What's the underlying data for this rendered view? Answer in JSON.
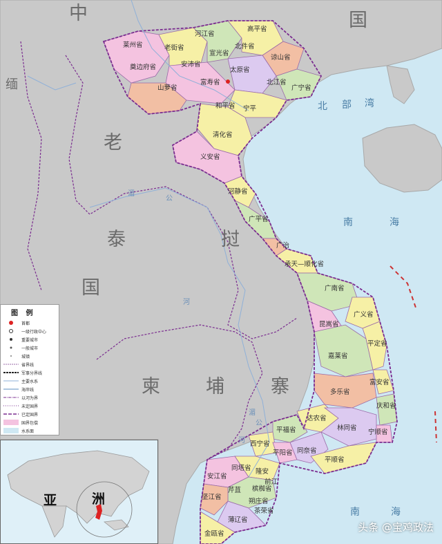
{
  "countries": {
    "china_left": "中",
    "china_right": "国",
    "laos_1": "老",
    "laos_2": "挝",
    "thailand_1": "泰",
    "thailand_2": "国",
    "cambodia_1": "柬",
    "cambodia_2": "埔",
    "cambodia_3": "寨",
    "burma": "缅"
  },
  "seas": {
    "gulf_1": "北",
    "gulf_2": "部",
    "gulf_3": "湾",
    "south_1": "南",
    "south_2": "海",
    "south_3": "南",
    "south_4": "海"
  },
  "provinces": {
    "hagiang": "河江省",
    "caobang": "高平省",
    "laichau": "莱州省",
    "laocai": "老街省",
    "tuyenquang": "宣光省",
    "backan": "北件省",
    "langson": "谅山省",
    "dienbien": "奠边府省",
    "yenbai": "安沛省",
    "thainguyen": "太原省",
    "sonla": "山萝省",
    "phutho": "富寿省",
    "bacgiang": "北江省",
    "quangninh": "广宁省",
    "hoabinh": "和平省",
    "ninhbinh": "宁平",
    "thanhhoa": "清化省",
    "nghean": "义安省",
    "hatinh": "河静省",
    "quangbinh": "广平省",
    "quangtri": "广治",
    "hue": "承天—顺化省",
    "quangnam": "广南省",
    "kontum": "昆嵩省",
    "quangngai": "广义省",
    "gialai": "嘉莱省",
    "binhdinh": "平定省",
    "daklak": "多乐省",
    "phuyen": "富安省",
    "khanhhoa": "庆和省",
    "daknong": "达农省",
    "lamdong": "林同省",
    "ninhthuan": "宁顺省",
    "binhphuoc": "平福省",
    "tayninh": "西宁省",
    "binhduong": "平阳省",
    "dongnai": "同奈省",
    "binhthuan": "平顺省",
    "longan": "隆安",
    "dongthap": "同塔省",
    "angiang": "安江省",
    "kiengiang": "坚江省",
    "cantho": "芹苴",
    "soctrang": "朔庄省",
    "baclieu": "薄辽省",
    "camau": "金瓯省",
    "tiengiang": "前江",
    "bentre": "槟椥省",
    "travinh": "茶荣省"
  },
  "rivers": {
    "r1": "湄",
    "r2": "公",
    "r3": "河",
    "r4": "湄",
    "r5": "公",
    "r6": "河"
  },
  "legend": {
    "title": "图 例",
    "items": [
      {
        "label": "首都",
        "sym": "capital"
      },
      {
        "label": "一级行政中心",
        "sym": "admin1"
      },
      {
        "label": "重要城市",
        "sym": "city"
      },
      {
        "label": "一般城市",
        "sym": "town"
      },
      {
        "label": "城镇",
        "sym": "village"
      },
      {
        "label": "省界线",
        "sym": "prov"
      },
      {
        "label": "军事分界线",
        "sym": "mil"
      },
      {
        "label": "主要水系",
        "sym": "water"
      },
      {
        "label": "海岸线",
        "sym": "coast"
      },
      {
        "label": "以河为界",
        "sym": "riverb"
      },
      {
        "label": "未定国界",
        "sym": "undef"
      },
      {
        "label": "已定国界",
        "sym": "def"
      },
      {
        "label": "国界包偿",
        "sym": "pink"
      },
      {
        "label": "水系面",
        "sym": "blue"
      }
    ]
  },
  "inset": {
    "asia": "亚",
    "zhou": "洲"
  },
  "watermark": "头条 @宝鸡政法",
  "colors": {
    "land_gray": "#c9c9c9",
    "sea": "#cfe8f3",
    "border_purple": "#7a2b8f",
    "pink": "#f4c3e0",
    "yellow": "#f6f0a6",
    "green": "#cfe6b8",
    "salmon": "#f2bfa4",
    "lavender": "#dccaf0"
  }
}
